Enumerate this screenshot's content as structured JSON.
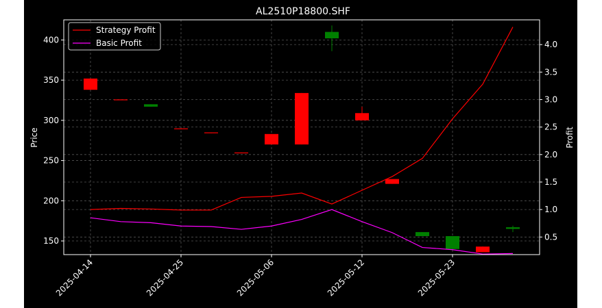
{
  "chart_data": {
    "type": "candlestick",
    "title": "AL2510P18800.SHF",
    "xlabel": "",
    "ylabel_left": "Price",
    "ylabel_right": "Profit",
    "background": "#000000",
    "grid": true,
    "grid_style": "dashed",
    "legend_position": "top-left",
    "colors": {
      "up": "#008000",
      "down": "#ff0000",
      "strategy": "#ff0000",
      "basic": "#ff00ff",
      "grid": "#555555",
      "text": "#ffffff"
    },
    "y_left": {
      "min": 133,
      "max": 425,
      "ticks": [
        150,
        200,
        250,
        300,
        350,
        400
      ]
    },
    "y_right": {
      "min": 0.18,
      "max": 4.45,
      "ticks": [
        0.5,
        1.0,
        1.5,
        2.0,
        2.5,
        3.0,
        3.5,
        4.0
      ],
      "tick_labels": [
        "0.5",
        "1.0",
        "1.5",
        "2.0",
        "2.5",
        "3.0",
        "3.5",
        "4.0"
      ]
    },
    "x_tick_labels": [
      {
        "index": 0,
        "label": "2025-04-14"
      },
      {
        "index": 3,
        "label": "2025-04-25"
      },
      {
        "index": 6,
        "label": "2025-05-06"
      },
      {
        "index": 9,
        "label": "2025-05-12"
      },
      {
        "index": 12,
        "label": "2025-05-23"
      }
    ],
    "candles": [
      {
        "open": 352,
        "close": 338,
        "high": 352,
        "low": 338
      },
      {
        "open": 326,
        "close": 325,
        "high": 326,
        "low": 325
      },
      {
        "open": 317,
        "close": 320,
        "high": 320,
        "low": 317
      },
      {
        "open": 290,
        "close": 289,
        "high": 290,
        "low": 289
      },
      {
        "open": 285,
        "close": 284,
        "high": 285,
        "low": 284
      },
      {
        "open": 260,
        "close": 259,
        "high": 260,
        "low": 259
      },
      {
        "open": 283,
        "close": 270,
        "high": 283,
        "low": 270
      },
      {
        "open": 334,
        "close": 270,
        "high": 334,
        "low": 270
      },
      {
        "open": 402,
        "close": 410,
        "high": 418,
        "low": 386
      },
      {
        "open": 309,
        "close": 300,
        "high": 317,
        "low": 300
      },
      {
        "open": 227,
        "close": 221,
        "high": 227,
        "low": 221
      },
      {
        "open": 156,
        "close": 161,
        "high": 161,
        "low": 156
      },
      {
        "open": 140,
        "close": 156,
        "high": 156,
        "low": 139
      },
      {
        "open": 143,
        "close": 136,
        "high": 143,
        "low": 136
      },
      {
        "open": 165,
        "close": 167,
        "high": 169,
        "low": 161
      }
    ],
    "series": [
      {
        "name": "Strategy Profit",
        "axis": "right",
        "values": [
          1.0,
          1.02,
          1.01,
          0.99,
          0.99,
          1.22,
          1.24,
          1.3,
          1.1,
          1.35,
          1.6,
          1.93,
          2.65,
          3.28,
          4.32
        ]
      },
      {
        "name": "Basic Profit",
        "axis": "right",
        "values": [
          0.85,
          0.78,
          0.76,
          0.7,
          0.69,
          0.64,
          0.7,
          0.82,
          1.0,
          0.78,
          0.58,
          0.31,
          0.27,
          0.19,
          0.2
        ]
      }
    ]
  }
}
